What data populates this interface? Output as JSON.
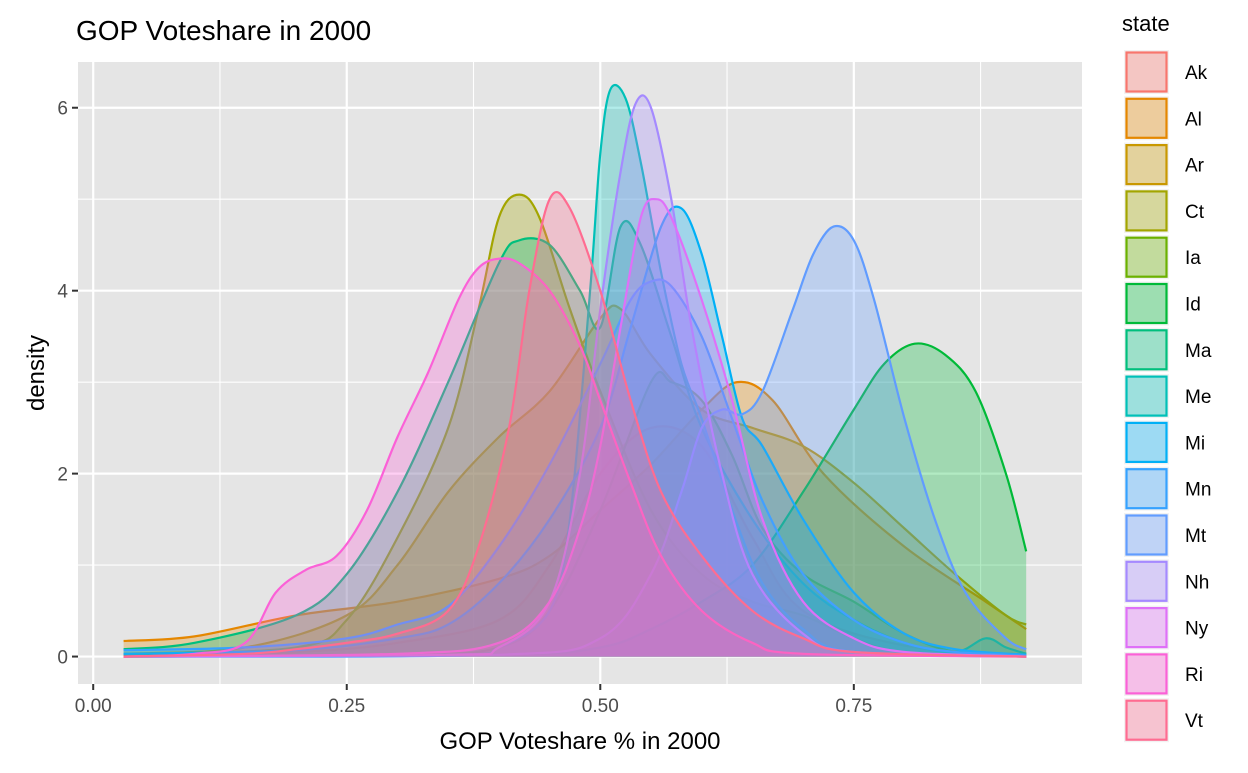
{
  "chart_data": {
    "type": "area",
    "title": "GOP Voteshare in 2000",
    "xlabel": "GOP Voteshare % in 2000",
    "ylabel": "density",
    "xlim": [
      -0.015,
      0.975
    ],
    "ylim": [
      -0.3,
      6.5
    ],
    "x_ticks": [
      0.0,
      0.25,
      0.5,
      0.75
    ],
    "x_tick_labels": [
      "0.00",
      "0.25",
      "0.50",
      "0.75"
    ],
    "y_ticks": [
      0,
      2,
      4,
      6
    ],
    "y_tick_labels": [
      "0",
      "2",
      "4",
      "6"
    ],
    "grid": true,
    "panel_background": "#e5e5e5",
    "legend_title": "state",
    "legend_position": "right",
    "series": [
      {
        "name": "Ak",
        "color": "#f8766d",
        "values": [
          [
            0.03,
            0
          ],
          [
            0.2,
            0.05
          ],
          [
            0.3,
            0.15
          ],
          [
            0.4,
            0.4
          ],
          [
            0.45,
            1.0
          ],
          [
            0.5,
            2.0
          ],
          [
            0.55,
            2.5
          ],
          [
            0.6,
            2.3
          ],
          [
            0.65,
            1.3
          ],
          [
            0.7,
            0.5
          ],
          [
            0.8,
            0.12
          ],
          [
            0.92,
            0.02
          ]
        ]
      },
      {
        "name": "Al",
        "color": "#e58700",
        "values": [
          [
            0.03,
            0.17
          ],
          [
            0.1,
            0.22
          ],
          [
            0.2,
            0.45
          ],
          [
            0.3,
            0.6
          ],
          [
            0.4,
            0.85
          ],
          [
            0.45,
            1.1
          ],
          [
            0.5,
            1.6
          ],
          [
            0.55,
            2.1
          ],
          [
            0.6,
            2.7
          ],
          [
            0.635,
            3.0
          ],
          [
            0.67,
            2.8
          ],
          [
            0.72,
            2.0
          ],
          [
            0.8,
            1.2
          ],
          [
            0.88,
            0.6
          ],
          [
            0.92,
            0.3
          ]
        ]
      },
      {
        "name": "Ar",
        "color": "#c99800",
        "values": [
          [
            0.03,
            0.03
          ],
          [
            0.15,
            0.1
          ],
          [
            0.25,
            0.45
          ],
          [
            0.3,
            1.0
          ],
          [
            0.35,
            1.8
          ],
          [
            0.4,
            2.4
          ],
          [
            0.45,
            2.9
          ],
          [
            0.5,
            3.7
          ],
          [
            0.52,
            3.8
          ],
          [
            0.55,
            3.3
          ],
          [
            0.6,
            2.7
          ],
          [
            0.65,
            2.5
          ],
          [
            0.7,
            2.3
          ],
          [
            0.75,
            1.9
          ],
          [
            0.8,
            1.4
          ],
          [
            0.85,
            0.9
          ],
          [
            0.9,
            0.45
          ],
          [
            0.92,
            0.35
          ]
        ]
      },
      {
        "name": "Ct",
        "color": "#a3a500",
        "values": [
          [
            0.03,
            0.02
          ],
          [
            0.2,
            0.1
          ],
          [
            0.25,
            0.4
          ],
          [
            0.3,
            1.3
          ],
          [
            0.35,
            2.5
          ],
          [
            0.38,
            3.8
          ],
          [
            0.4,
            4.8
          ],
          [
            0.42,
            5.05
          ],
          [
            0.44,
            4.8
          ],
          [
            0.47,
            3.8
          ],
          [
            0.5,
            2.9
          ],
          [
            0.55,
            1.6
          ],
          [
            0.6,
            0.9
          ],
          [
            0.65,
            0.6
          ],
          [
            0.7,
            0.45
          ],
          [
            0.75,
            0.2
          ],
          [
            0.8,
            0.05
          ],
          [
            0.92,
            0
          ]
        ]
      },
      {
        "name": "Ia",
        "color": "#6bb100",
        "values": [
          [
            0.03,
            0
          ],
          [
            0.3,
            0.02
          ],
          [
            0.4,
            0.1
          ],
          [
            0.45,
            0.5
          ],
          [
            0.5,
            1.6
          ],
          [
            0.55,
            3.0
          ],
          [
            0.57,
            3.0
          ],
          [
            0.6,
            2.8
          ],
          [
            0.63,
            2.2
          ],
          [
            0.66,
            1.4
          ],
          [
            0.7,
            0.9
          ],
          [
            0.75,
            0.6
          ],
          [
            0.8,
            0.25
          ],
          [
            0.85,
            0.05
          ],
          [
            0.92,
            0
          ]
        ]
      },
      {
        "name": "Id",
        "color": "#00ba38",
        "values": [
          [
            0.03,
            0
          ],
          [
            0.4,
            0.02
          ],
          [
            0.5,
            0.1
          ],
          [
            0.55,
            0.3
          ],
          [
            0.6,
            0.6
          ],
          [
            0.65,
            1.0
          ],
          [
            0.7,
            1.8
          ],
          [
            0.75,
            2.7
          ],
          [
            0.78,
            3.2
          ],
          [
            0.81,
            3.42
          ],
          [
            0.84,
            3.3
          ],
          [
            0.87,
            2.9
          ],
          [
            0.9,
            2.0
          ],
          [
            0.92,
            1.15
          ]
        ]
      },
      {
        "name": "Ma",
        "color": "#00bf7d",
        "values": [
          [
            0.03,
            0.08
          ],
          [
            0.1,
            0.15
          ],
          [
            0.2,
            0.45
          ],
          [
            0.25,
            0.9
          ],
          [
            0.3,
            1.8
          ],
          [
            0.35,
            3.0
          ],
          [
            0.4,
            4.3
          ],
          [
            0.42,
            4.55
          ],
          [
            0.45,
            4.5
          ],
          [
            0.48,
            4.0
          ],
          [
            0.5,
            3.6
          ],
          [
            0.52,
            4.7
          ],
          [
            0.54,
            4.5
          ],
          [
            0.57,
            3.5
          ],
          [
            0.6,
            2.5
          ],
          [
            0.65,
            1.5
          ],
          [
            0.7,
            0.8
          ],
          [
            0.75,
            0.4
          ],
          [
            0.8,
            0.15
          ],
          [
            0.85,
            0.05
          ],
          [
            0.88,
            0.2
          ],
          [
            0.9,
            0.1
          ],
          [
            0.92,
            0.03
          ]
        ]
      },
      {
        "name": "Me",
        "color": "#00c0b8",
        "values": [
          [
            0.03,
            0
          ],
          [
            0.35,
            0.02
          ],
          [
            0.4,
            0.1
          ],
          [
            0.45,
            0.5
          ],
          [
            0.47,
            1.5
          ],
          [
            0.49,
            4.0
          ],
          [
            0.5,
            5.5
          ],
          [
            0.51,
            6.2
          ],
          [
            0.525,
            6.1
          ],
          [
            0.54,
            5.4
          ],
          [
            0.56,
            4.2
          ],
          [
            0.58,
            3.2
          ],
          [
            0.6,
            2.6
          ],
          [
            0.63,
            1.6
          ],
          [
            0.66,
            0.8
          ],
          [
            0.7,
            0.3
          ],
          [
            0.75,
            0.05
          ],
          [
            0.92,
            0
          ]
        ]
      },
      {
        "name": "Mi",
        "color": "#00b0f6",
        "values": [
          [
            0.03,
            0.03
          ],
          [
            0.2,
            0.07
          ],
          [
            0.3,
            0.2
          ],
          [
            0.35,
            0.35
          ],
          [
            0.4,
            0.8
          ],
          [
            0.45,
            1.5
          ],
          [
            0.5,
            2.5
          ],
          [
            0.53,
            3.6
          ],
          [
            0.56,
            4.7
          ],
          [
            0.58,
            4.9
          ],
          [
            0.6,
            4.4
          ],
          [
            0.62,
            3.5
          ],
          [
            0.64,
            2.6
          ],
          [
            0.66,
            2.3
          ],
          [
            0.7,
            1.5
          ],
          [
            0.75,
            0.7
          ],
          [
            0.8,
            0.25
          ],
          [
            0.85,
            0.08
          ],
          [
            0.92,
            0.02
          ]
        ]
      },
      {
        "name": "Mn",
        "color": "#35a2ff",
        "values": [
          [
            0.03,
            0.07
          ],
          [
            0.15,
            0.1
          ],
          [
            0.25,
            0.2
          ],
          [
            0.3,
            0.35
          ],
          [
            0.35,
            0.55
          ],
          [
            0.4,
            1.2
          ],
          [
            0.45,
            2.1
          ],
          [
            0.5,
            3.2
          ],
          [
            0.53,
            3.9
          ],
          [
            0.55,
            4.1
          ],
          [
            0.57,
            4.05
          ],
          [
            0.6,
            3.5
          ],
          [
            0.63,
            2.6
          ],
          [
            0.66,
            1.7
          ],
          [
            0.7,
            0.9
          ],
          [
            0.75,
            0.4
          ],
          [
            0.8,
            0.15
          ],
          [
            0.85,
            0.05
          ],
          [
            0.92,
            0.01
          ]
        ]
      },
      {
        "name": "Mt",
        "color": "#619cff",
        "values": [
          [
            0.03,
            0
          ],
          [
            0.4,
            0.02
          ],
          [
            0.5,
            0.2
          ],
          [
            0.55,
            0.9
          ],
          [
            0.58,
            1.8
          ],
          [
            0.6,
            2.5
          ],
          [
            0.62,
            2.7
          ],
          [
            0.64,
            2.65
          ],
          [
            0.66,
            2.9
          ],
          [
            0.69,
            3.8
          ],
          [
            0.71,
            4.4
          ],
          [
            0.73,
            4.7
          ],
          [
            0.75,
            4.55
          ],
          [
            0.77,
            3.9
          ],
          [
            0.8,
            2.6
          ],
          [
            0.83,
            1.5
          ],
          [
            0.86,
            0.7
          ],
          [
            0.9,
            0.2
          ],
          [
            0.92,
            0.08
          ]
        ]
      },
      {
        "name": "Nh",
        "color": "#a58aff",
        "values": [
          [
            0.03,
            0
          ],
          [
            0.35,
            0.02
          ],
          [
            0.4,
            0.1
          ],
          [
            0.45,
            0.6
          ],
          [
            0.48,
            2.0
          ],
          [
            0.5,
            3.8
          ],
          [
            0.52,
            5.3
          ],
          [
            0.535,
            6.05
          ],
          [
            0.55,
            6.0
          ],
          [
            0.57,
            5.0
          ],
          [
            0.59,
            3.6
          ],
          [
            0.62,
            2.0
          ],
          [
            0.65,
            0.9
          ],
          [
            0.7,
            0.25
          ],
          [
            0.75,
            0.05
          ],
          [
            0.92,
            0
          ]
        ]
      },
      {
        "name": "Ny",
        "color": "#df70f8",
        "values": [
          [
            0.03,
            0
          ],
          [
            0.3,
            0.03
          ],
          [
            0.4,
            0.15
          ],
          [
            0.45,
            0.6
          ],
          [
            0.48,
            1.4
          ],
          [
            0.5,
            2.3
          ],
          [
            0.52,
            3.6
          ],
          [
            0.54,
            4.8
          ],
          [
            0.555,
            5.0
          ],
          [
            0.57,
            4.8
          ],
          [
            0.6,
            3.9
          ],
          [
            0.63,
            2.8
          ],
          [
            0.66,
            1.5
          ],
          [
            0.7,
            0.6
          ],
          [
            0.75,
            0.2
          ],
          [
            0.8,
            0.05
          ],
          [
            0.92,
            0
          ]
        ]
      },
      {
        "name": "Ri",
        "color": "#fb61d7",
        "values": [
          [
            0.03,
            0
          ],
          [
            0.1,
            0.03
          ],
          [
            0.15,
            0.15
          ],
          [
            0.18,
            0.7
          ],
          [
            0.21,
            0.95
          ],
          [
            0.24,
            1.1
          ],
          [
            0.27,
            1.6
          ],
          [
            0.3,
            2.4
          ],
          [
            0.33,
            3.1
          ],
          [
            0.36,
            3.9
          ],
          [
            0.38,
            4.25
          ],
          [
            0.4,
            4.35
          ],
          [
            0.42,
            4.3
          ],
          [
            0.45,
            4.0
          ],
          [
            0.48,
            3.4
          ],
          [
            0.5,
            2.8
          ],
          [
            0.53,
            1.9
          ],
          [
            0.56,
            1.1
          ],
          [
            0.6,
            0.5
          ],
          [
            0.65,
            0.15
          ],
          [
            0.7,
            0.03
          ],
          [
            0.92,
            0
          ]
        ]
      },
      {
        "name": "Vt",
        "color": "#ff6c91",
        "values": [
          [
            0.03,
            0
          ],
          [
            0.15,
            0.03
          ],
          [
            0.2,
            0.08
          ],
          [
            0.25,
            0.15
          ],
          [
            0.3,
            0.25
          ],
          [
            0.35,
            0.5
          ],
          [
            0.38,
            1.2
          ],
          [
            0.41,
            2.5
          ],
          [
            0.43,
            4.0
          ],
          [
            0.45,
            5.0
          ],
          [
            0.47,
            4.9
          ],
          [
            0.5,
            4.0
          ],
          [
            0.53,
            2.8
          ],
          [
            0.56,
            1.8
          ],
          [
            0.6,
            1.1
          ],
          [
            0.65,
            0.5
          ],
          [
            0.7,
            0.2
          ],
          [
            0.75,
            0.05
          ],
          [
            0.92,
            0
          ]
        ]
      }
    ]
  }
}
